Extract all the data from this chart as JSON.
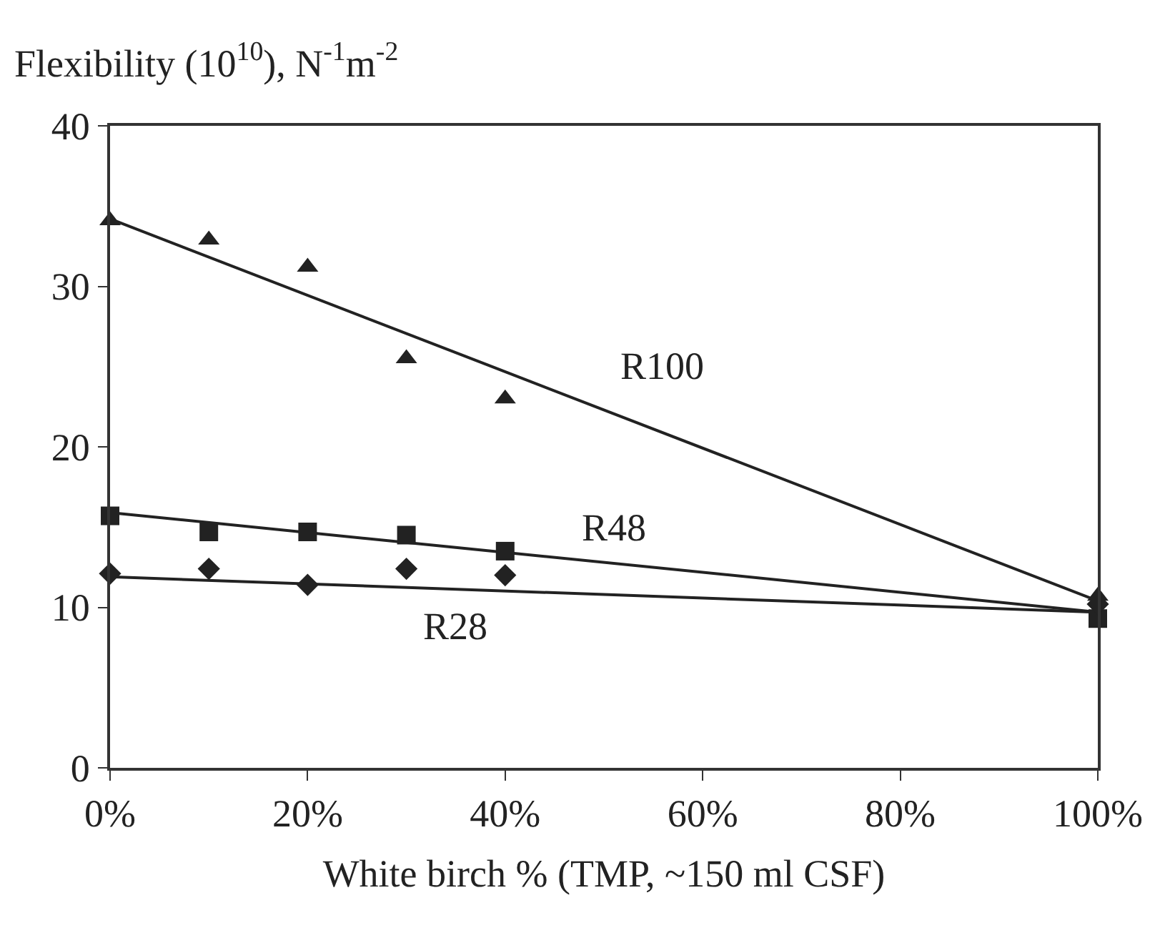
{
  "chart_data": {
    "type": "scatter",
    "ylabel": "Flexibility (10$^{10}$), N$^{-1}$m$^{-2}$",
    "xlabel": "White birch % (TMP, ~150 ml CSF)",
    "x": [
      0,
      10,
      20,
      30,
      40,
      100
    ],
    "series": [
      {
        "name": "R100",
        "color": "#222222",
        "marker": "triangle",
        "values": [
          34.1,
          32.9,
          31.2,
          25.5,
          23.0,
          10.7
        ]
      },
      {
        "name": "R48",
        "color": "#222222",
        "marker": "square",
        "values": [
          15.7,
          14.7,
          14.7,
          14.5,
          13.5,
          9.3
        ]
      },
      {
        "name": "R28",
        "color": "#222222",
        "marker": "diamond",
        "values": [
          12.1,
          12.4,
          11.4,
          12.4,
          12.0,
          10.2
        ]
      },
      {
        "type": "line",
        "color": "#222222",
        "values": [
          34.2,
          null,
          null,
          null,
          null,
          10.4
        ]
      },
      {
        "type": "line",
        "color": "#222222",
        "values": [
          15.9,
          null,
          null,
          null,
          null,
          9.7
        ]
      },
      {
        "type": "line",
        "color": "#222222",
        "values": [
          11.9,
          null,
          null,
          null,
          null,
          9.7
        ]
      }
    ],
    "xlim": [
      0,
      100
    ],
    "xticks": [
      {
        "value": 0,
        "label": "0%"
      },
      {
        "value": 20,
        "label": "20%"
      },
      {
        "value": 40,
        "label": "40%"
      },
      {
        "value": 60,
        "label": "60%"
      },
      {
        "value": 80,
        "label": "80%"
      },
      {
        "value": 100,
        "label": "100%"
      }
    ],
    "ylim": [
      0,
      40
    ],
    "yticks": [
      0,
      10,
      20,
      30,
      40
    ],
    "grid": false,
    "legend": false,
    "line_style": "solid"
  }
}
